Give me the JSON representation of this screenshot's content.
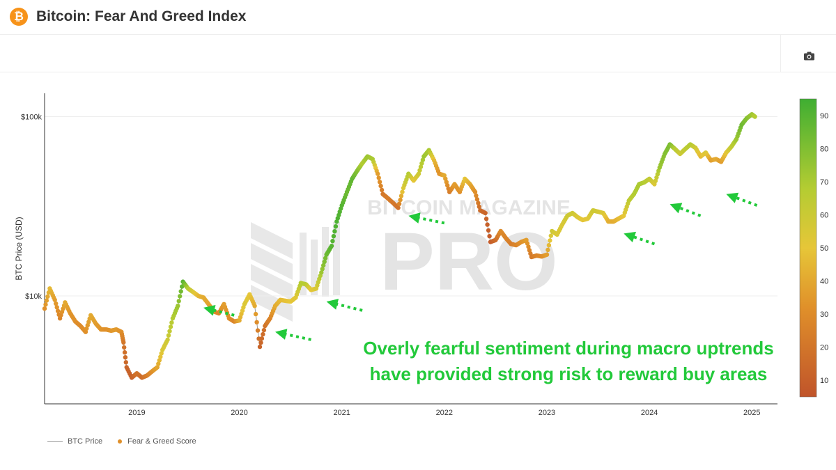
{
  "header": {
    "title": "Bitcoin: Fear And Greed Index",
    "logo_icon": "bitcoin-logo-icon",
    "logo_glyph": "₿"
  },
  "toolbar": {
    "camera_icon": "camera-icon"
  },
  "watermark": {
    "line1": "BITCOIN MAGAZINE",
    "line2": "PRO"
  },
  "annotation": {
    "line1": "Overly fearful sentiment during macro uptrends",
    "line2": "have provided strong risk to reward buy areas",
    "color": "#22c93a"
  },
  "colors": {
    "fear": "#c0542a",
    "mid": "#e3c23a",
    "greed": "#3fae32",
    "price_line": "#999999"
  },
  "chart_data": {
    "type": "scatter",
    "ylabel": "BTC Price (USD)",
    "yscale": "log",
    "ylim": [
      2500,
      135000
    ],
    "xlim": [
      2018.1,
      2025.25
    ],
    "y_ticks": [
      {
        "value": 10000,
        "label": "$10k"
      },
      {
        "value": 100000,
        "label": "$100k"
      }
    ],
    "x_ticks": [
      {
        "value": 2019,
        "label": "2019"
      },
      {
        "value": 2020,
        "label": "2020"
      },
      {
        "value": 2021,
        "label": "2021"
      },
      {
        "value": 2022,
        "label": "2022"
      },
      {
        "value": 2023,
        "label": "2023"
      },
      {
        "value": 2024,
        "label": "2024"
      },
      {
        "value": 2025,
        "label": "2025"
      }
    ],
    "colorbar": {
      "min": 5,
      "max": 95,
      "ticks": [
        10,
        20,
        30,
        40,
        50,
        60,
        70,
        80,
        90
      ]
    },
    "legend": [
      "BTC Price",
      "Fear & Greed Score"
    ],
    "series": [
      {
        "name": "BTC Price",
        "points": [
          [
            2018.1,
            8500,
            30
          ],
          [
            2018.15,
            11000,
            45
          ],
          [
            2018.2,
            9500,
            35
          ],
          [
            2018.25,
            7500,
            25
          ],
          [
            2018.3,
            9200,
            40
          ],
          [
            2018.35,
            8000,
            32
          ],
          [
            2018.4,
            7200,
            30
          ],
          [
            2018.45,
            6800,
            28
          ],
          [
            2018.5,
            6300,
            30
          ],
          [
            2018.55,
            7800,
            40
          ],
          [
            2018.6,
            7000,
            35
          ],
          [
            2018.65,
            6500,
            32
          ],
          [
            2018.7,
            6500,
            30
          ],
          [
            2018.75,
            6400,
            32
          ],
          [
            2018.8,
            6500,
            34
          ],
          [
            2018.85,
            6300,
            30
          ],
          [
            2018.87,
            5500,
            20
          ],
          [
            2018.9,
            4000,
            12
          ],
          [
            2018.95,
            3500,
            10
          ],
          [
            2019.0,
            3700,
            18
          ],
          [
            2019.05,
            3500,
            15
          ],
          [
            2019.1,
            3600,
            22
          ],
          [
            2019.15,
            3800,
            30
          ],
          [
            2019.2,
            4000,
            38
          ],
          [
            2019.25,
            5000,
            55
          ],
          [
            2019.3,
            5700,
            60
          ],
          [
            2019.35,
            7500,
            70
          ],
          [
            2019.4,
            8800,
            75
          ],
          [
            2019.45,
            12000,
            90
          ],
          [
            2019.5,
            11000,
            70
          ],
          [
            2019.55,
            10500,
            55
          ],
          [
            2019.6,
            10000,
            45
          ],
          [
            2019.65,
            9800,
            40
          ],
          [
            2019.7,
            9000,
            38
          ],
          [
            2019.75,
            8200,
            30
          ],
          [
            2019.8,
            8000,
            25
          ],
          [
            2019.85,
            9000,
            35
          ],
          [
            2019.9,
            7500,
            30
          ],
          [
            2019.95,
            7200,
            25
          ],
          [
            2020.0,
            7300,
            40
          ],
          [
            2020.05,
            9000,
            55
          ],
          [
            2020.1,
            10200,
            50
          ],
          [
            2020.15,
            8800,
            40
          ],
          [
            2020.2,
            5200,
            12
          ],
          [
            2020.25,
            6800,
            18
          ],
          [
            2020.3,
            7500,
            25
          ],
          [
            2020.35,
            8800,
            40
          ],
          [
            2020.4,
            9500,
            45
          ],
          [
            2020.45,
            9400,
            48
          ],
          [
            2020.5,
            9300,
            50
          ],
          [
            2020.55,
            9800,
            52
          ],
          [
            2020.6,
            11800,
            70
          ],
          [
            2020.65,
            11600,
            68
          ],
          [
            2020.7,
            10800,
            50
          ],
          [
            2020.75,
            11000,
            55
          ],
          [
            2020.8,
            13500,
            75
          ],
          [
            2020.85,
            17000,
            85
          ],
          [
            2020.9,
            19000,
            90
          ],
          [
            2020.95,
            26000,
            92
          ],
          [
            2021.0,
            32000,
            90
          ],
          [
            2021.05,
            38000,
            85
          ],
          [
            2021.1,
            45000,
            88
          ],
          [
            2021.15,
            50000,
            80
          ],
          [
            2021.2,
            55000,
            70
          ],
          [
            2021.25,
            60000,
            75
          ],
          [
            2021.3,
            58000,
            72
          ],
          [
            2021.35,
            48000,
            35
          ],
          [
            2021.4,
            37000,
            20
          ],
          [
            2021.45,
            35000,
            22
          ],
          [
            2021.5,
            33000,
            20
          ],
          [
            2021.55,
            31000,
            18
          ],
          [
            2021.6,
            40000,
            55
          ],
          [
            2021.65,
            48000,
            70
          ],
          [
            2021.7,
            44000,
            50
          ],
          [
            2021.75,
            48000,
            60
          ],
          [
            2021.8,
            60000,
            75
          ],
          [
            2021.85,
            65000,
            72
          ],
          [
            2021.9,
            57000,
            45
          ],
          [
            2021.95,
            48000,
            30
          ],
          [
            2022.0,
            47000,
            40
          ],
          [
            2022.05,
            38000,
            22
          ],
          [
            2022.1,
            42000,
            35
          ],
          [
            2022.15,
            38000,
            30
          ],
          [
            2022.2,
            45000,
            50
          ],
          [
            2022.25,
            42000,
            40
          ],
          [
            2022.3,
            38000,
            30
          ],
          [
            2022.35,
            30000,
            15
          ],
          [
            2022.4,
            29000,
            12
          ],
          [
            2022.45,
            20000,
            8
          ],
          [
            2022.5,
            20500,
            15
          ],
          [
            2022.55,
            23000,
            28
          ],
          [
            2022.6,
            21000,
            25
          ],
          [
            2022.65,
            19500,
            22
          ],
          [
            2022.7,
            19200,
            25
          ],
          [
            2022.75,
            20000,
            30
          ],
          [
            2022.8,
            20500,
            35
          ],
          [
            2022.85,
            16500,
            20
          ],
          [
            2022.9,
            16800,
            25
          ],
          [
            2022.95,
            16600,
            28
          ],
          [
            2023.0,
            17000,
            35
          ],
          [
            2023.05,
            23000,
            60
          ],
          [
            2023.1,
            22000,
            55
          ],
          [
            2023.15,
            25000,
            55
          ],
          [
            2023.2,
            28000,
            60
          ],
          [
            2023.25,
            29000,
            60
          ],
          [
            2023.3,
            27500,
            55
          ],
          [
            2023.35,
            26500,
            50
          ],
          [
            2023.4,
            27000,
            52
          ],
          [
            2023.45,
            30000,
            60
          ],
          [
            2023.5,
            29500,
            58
          ],
          [
            2023.55,
            29000,
            55
          ],
          [
            2023.6,
            26000,
            42
          ],
          [
            2023.65,
            26000,
            40
          ],
          [
            2023.7,
            27000,
            45
          ],
          [
            2023.75,
            28000,
            50
          ],
          [
            2023.8,
            34000,
            65
          ],
          [
            2023.85,
            37000,
            70
          ],
          [
            2023.9,
            42000,
            72
          ],
          [
            2023.95,
            43000,
            70
          ],
          [
            2024.0,
            45000,
            65
          ],
          [
            2024.05,
            42000,
            55
          ],
          [
            2024.1,
            52000,
            75
          ],
          [
            2024.15,
            62000,
            80
          ],
          [
            2024.2,
            70000,
            82
          ],
          [
            2024.25,
            66000,
            70
          ],
          [
            2024.3,
            62000,
            60
          ],
          [
            2024.35,
            66000,
            65
          ],
          [
            2024.4,
            70000,
            70
          ],
          [
            2024.45,
            67000,
            60
          ],
          [
            2024.5,
            60000,
            45
          ],
          [
            2024.55,
            63000,
            55
          ],
          [
            2024.6,
            57000,
            35
          ],
          [
            2024.65,
            58000,
            40
          ],
          [
            2024.7,
            56000,
            35
          ],
          [
            2024.75,
            63000,
            50
          ],
          [
            2024.8,
            68000,
            65
          ],
          [
            2024.85,
            75000,
            75
          ],
          [
            2024.9,
            90000,
            85
          ],
          [
            2024.95,
            98000,
            80
          ],
          [
            2025.0,
            103000,
            75
          ],
          [
            2025.03,
            100000,
            70
          ]
        ]
      }
    ]
  }
}
